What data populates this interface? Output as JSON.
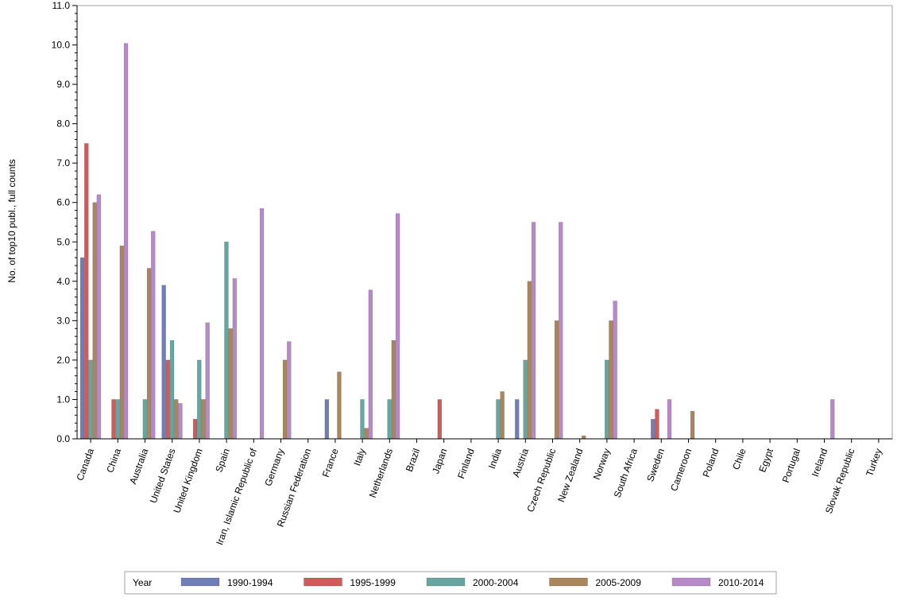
{
  "chart_data": {
    "type": "bar",
    "title": "",
    "xlabel": "",
    "ylabel": "No. of top10 publ., full counts",
    "ylim": [
      0,
      11
    ],
    "ytick_step": 1,
    "ytick_format": "0.0",
    "categories": [
      "Canada",
      "China",
      "Australia",
      "United States",
      "United Kingdom",
      "Spain",
      "Iran, Islamic Republic of",
      "Germany",
      "Russian Federation",
      "France",
      "Italy",
      "Netherlands",
      "Brazil",
      "Japan",
      "Finland",
      "India",
      "Austria",
      "Czech Republic",
      "New Zealand",
      "Norway",
      "South Africa",
      "Sweden",
      "Cameroon",
      "Poland",
      "Chile",
      "Egypt",
      "Portugal",
      "Ireland",
      "Slovak Republic",
      "Turkey"
    ],
    "series": [
      {
        "name": "1990-1994",
        "color": "#6f7eb5",
        "values": [
          4.6,
          0,
          0,
          3.9,
          0,
          0,
          0,
          0,
          0,
          1,
          0,
          0,
          0,
          0,
          0,
          0,
          1,
          0,
          0,
          0,
          0,
          0.5,
          0,
          0,
          0,
          0,
          0,
          0,
          0,
          0
        ]
      },
      {
        "name": "1995-1999",
        "color": "#d05b5b",
        "values": [
          7.5,
          1,
          0,
          2,
          0.5,
          0,
          0,
          0,
          0,
          0,
          0,
          0,
          0,
          1,
          0,
          0,
          0,
          0,
          0,
          0,
          0,
          0.75,
          0,
          0,
          0,
          0,
          0,
          0,
          0,
          0
        ]
      },
      {
        "name": "2000-2004",
        "color": "#66a5a0",
        "values": [
          2,
          1,
          1,
          2.5,
          2,
          5,
          0,
          0,
          0,
          0,
          1,
          1,
          0,
          0,
          0,
          1,
          2,
          0,
          0,
          2,
          0,
          0,
          0,
          0,
          0,
          0,
          0,
          0,
          0,
          0
        ]
      },
      {
        "name": "2005-2009",
        "color": "#a9865b",
        "values": [
          6,
          4.9,
          4.33,
          1,
          1,
          2.8,
          0,
          2,
          0,
          1.7,
          0.27,
          2.5,
          0,
          0,
          0,
          1.2,
          4,
          3,
          0.08,
          3,
          0,
          0,
          0.7,
          0,
          0,
          0,
          0,
          0,
          0,
          0
        ]
      },
      {
        "name": "2010-2014",
        "color": "#b689c9",
        "values": [
          6.2,
          10.04,
          5.27,
          0.9,
          2.95,
          4.07,
          5.85,
          2.47,
          0,
          0,
          3.78,
          5.72,
          0,
          0,
          0,
          0,
          5.5,
          5.5,
          0,
          3.5,
          0,
          1,
          0,
          0,
          0,
          0,
          0,
          1,
          0,
          0
        ]
      }
    ],
    "legend": {
      "title": "Year",
      "position": "bottom-center"
    }
  }
}
